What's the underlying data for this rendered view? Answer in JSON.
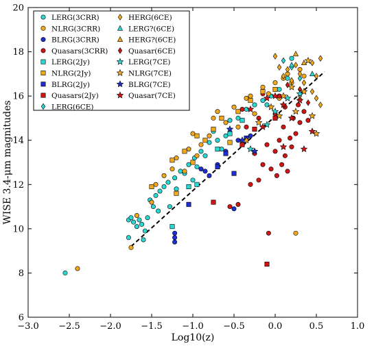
{
  "chart_data": {
    "type": "scatter",
    "xlabel": "Log10(z)",
    "ylabel": "WISE 3.4-μm magnitudes",
    "xlim": [
      -3.0,
      1.0
    ],
    "ylim": [
      6,
      20
    ],
    "xticks": [
      "−3.0",
      "−2.5",
      "−2.0",
      "−1.5",
      "−1.0",
      "−0.5",
      "0.0",
      "0.5",
      "1.0"
    ],
    "yticks": [
      "6",
      "8",
      "10",
      "12",
      "14",
      "16",
      "18",
      "20"
    ],
    "legend_position": "top-left",
    "legend": [
      {
        "label": "LERG(3CRR)",
        "marker": "circle",
        "color": "#2ad7d2"
      },
      {
        "label": "NLRG(3CRR)",
        "marker": "circle",
        "color": "#f2a81d"
      },
      {
        "label": "BLRG(3CRR)",
        "marker": "circle",
        "color": "#1f2fcf"
      },
      {
        "label": "Quasars(3CRR)",
        "marker": "circle",
        "color": "#d01515"
      },
      {
        "label": "LERG(2Jy)",
        "marker": "square",
        "color": "#2ad7d2"
      },
      {
        "label": "NLRG(2Jy)",
        "marker": "square",
        "color": "#f2a81d"
      },
      {
        "label": "BLRG(2Jy)",
        "marker": "square",
        "color": "#1f2fcf"
      },
      {
        "label": "Quasars(2Jy)",
        "marker": "square",
        "color": "#d01515"
      },
      {
        "label": "LERG(6CE)",
        "marker": "diamond",
        "color": "#2ad7d2"
      },
      {
        "label": "HERG(6CE)",
        "marker": "diamond",
        "color": "#f2a81d"
      },
      {
        "label": "LERG?(6CE)",
        "marker": "triangle",
        "color": "#2ad7d2"
      },
      {
        "label": "HERG?(6CE)",
        "marker": "triangle",
        "color": "#f2a81d"
      },
      {
        "label": "Quasar(6CE)",
        "marker": "diamond",
        "color": "#d01515"
      },
      {
        "label": "LERG(7CE)",
        "marker": "star",
        "color": "#2ad7d2"
      },
      {
        "label": "NLRG(7CE)",
        "marker": "star",
        "color": "#f2a81d"
      },
      {
        "label": "BLRG(7CE)",
        "marker": "star",
        "color": "#1f2fcf"
      },
      {
        "label": "Quasar(7CE)",
        "marker": "star",
        "color": "#d01515"
      }
    ],
    "fit_line": {
      "style": "dashed",
      "color": "#000000",
      "x": [
        -1.75,
        0.6
      ],
      "y": [
        9.2,
        17.1
      ]
    },
    "series": [
      {
        "name": "LERG(3CRR)",
        "marker": "circle",
        "color": "#2ad7d2",
        "points": [
          [
            -2.55,
            8.0
          ],
          [
            -1.78,
            9.6
          ],
          [
            -1.78,
            10.4
          ],
          [
            -1.75,
            10.5
          ],
          [
            -1.72,
            10.3
          ],
          [
            -1.68,
            10.1
          ],
          [
            -1.65,
            10.4
          ],
          [
            -1.62,
            10.2
          ],
          [
            -1.6,
            9.5
          ],
          [
            -1.58,
            9.9
          ],
          [
            -1.55,
            10.5
          ],
          [
            -1.52,
            11.3
          ],
          [
            -1.48,
            11.0
          ],
          [
            -1.45,
            11.5
          ],
          [
            -1.42,
            10.8
          ],
          [
            -1.4,
            11.7
          ],
          [
            -1.35,
            11.9
          ],
          [
            -1.3,
            12.1
          ],
          [
            -1.28,
            11.0
          ],
          [
            -1.22,
            12.3
          ],
          [
            -1.2,
            11.8
          ],
          [
            -1.15,
            12.6
          ],
          [
            -1.1,
            12.5
          ],
          [
            -1.05,
            12.9
          ],
          [
            -1.0,
            12.2
          ],
          [
            -0.98,
            13.2
          ],
          [
            -0.95,
            12.8
          ],
          [
            -0.9,
            13.5
          ],
          [
            -0.85,
            13.3
          ],
          [
            -0.8,
            13.9
          ],
          [
            -0.75,
            14.4
          ],
          [
            -0.7,
            14.0
          ],
          [
            -0.65,
            13.6
          ],
          [
            -0.6,
            14.2
          ],
          [
            -0.55,
            14.9
          ],
          [
            -0.45,
            15.0
          ],
          [
            -0.35,
            15.4
          ],
          [
            -0.25,
            15.6
          ],
          [
            -0.15,
            15.8
          ],
          [
            -0.1,
            15.6
          ],
          [
            -0.05,
            16.0
          ],
          [
            0.05,
            16.3
          ],
          [
            0.15,
            16.8
          ],
          [
            0.2,
            17.7
          ]
        ]
      },
      {
        "name": "NLRG(3CRR)",
        "marker": "circle",
        "color": "#f2a81d",
        "points": [
          [
            -2.4,
            8.2
          ],
          [
            -1.75,
            9.15
          ],
          [
            -1.68,
            10.6
          ],
          [
            -1.5,
            11.2
          ],
          [
            -1.45,
            12.0
          ],
          [
            -1.35,
            12.4
          ],
          [
            -1.25,
            12.7
          ],
          [
            -1.2,
            13.2
          ],
          [
            -1.1,
            12.6
          ],
          [
            -1.05,
            13.6
          ],
          [
            -1.0,
            14.3
          ],
          [
            -0.95,
            13.3
          ],
          [
            -0.9,
            13.8
          ],
          [
            -0.8,
            14.2
          ],
          [
            -0.75,
            15.0
          ],
          [
            -0.7,
            15.3
          ],
          [
            -0.6,
            14.8
          ],
          [
            -0.5,
            15.5
          ],
          [
            -0.45,
            14.6
          ],
          [
            -0.35,
            15.9
          ],
          [
            -0.3,
            16.0
          ],
          [
            -0.25,
            15.2
          ],
          [
            -0.15,
            16.4
          ],
          [
            -0.08,
            16.1
          ],
          [
            0.0,
            16.6
          ],
          [
            0.05,
            15.9
          ],
          [
            0.1,
            16.8
          ],
          [
            0.15,
            17.0
          ],
          [
            0.2,
            16.6
          ],
          [
            0.25,
            9.8
          ],
          [
            0.3,
            17.2
          ],
          [
            0.35,
            16.9
          ]
        ]
      },
      {
        "name": "BLRG(3CRR)",
        "marker": "circle",
        "color": "#1f2fcf",
        "points": [
          [
            -1.22,
            9.4
          ],
          [
            -1.22,
            9.6
          ],
          [
            -1.22,
            9.8
          ],
          [
            -0.9,
            12.7
          ],
          [
            -0.85,
            12.6
          ],
          [
            -0.8,
            12.4
          ],
          [
            -0.7,
            12.9
          ],
          [
            -0.6,
            13.5
          ],
          [
            -0.5,
            10.9
          ],
          [
            -0.45,
            14.0
          ],
          [
            -0.3,
            14.2
          ]
        ]
      },
      {
        "name": "Quasars(3CRR)",
        "marker": "circle",
        "color": "#d01515",
        "points": [
          [
            -0.55,
            11.0
          ],
          [
            -0.45,
            11.1
          ],
          [
            -0.3,
            12.0
          ],
          [
            -0.25,
            13.4
          ],
          [
            -0.2,
            12.2
          ],
          [
            -0.15,
            12.9
          ],
          [
            -0.1,
            13.8
          ],
          [
            -0.08,
            9.8
          ],
          [
            -0.05,
            12.7
          ],
          [
            0.0,
            13.5
          ],
          [
            0.02,
            12.4
          ],
          [
            0.05,
            14.0
          ],
          [
            0.08,
            12.9
          ],
          [
            0.1,
            14.6
          ],
          [
            0.12,
            13.3
          ],
          [
            0.15,
            12.6
          ],
          [
            0.18,
            14.1
          ],
          [
            0.2,
            13.7
          ],
          [
            0.22,
            15.0
          ],
          [
            0.25,
            14.3
          ],
          [
            0.28,
            15.6
          ],
          [
            0.3,
            14.8
          ],
          [
            0.35,
            15.3
          ],
          [
            0.4,
            14.9
          ],
          [
            -0.35,
            14.6
          ],
          [
            -0.4,
            15.4
          ],
          [
            -0.2,
            15.0
          ],
          [
            -0.15,
            16.1
          ],
          [
            0.0,
            15.2
          ],
          [
            0.05,
            16.0
          ],
          [
            0.12,
            15.5
          ]
        ]
      },
      {
        "name": "LERG(2Jy)",
        "marker": "square",
        "color": "#2ad7d2",
        "points": [
          [
            -1.25,
            10.1
          ],
          [
            -1.05,
            11.9
          ],
          [
            -0.95,
            12.0
          ],
          [
            -0.7,
            13.6
          ],
          [
            -0.55,
            14.3
          ],
          [
            -0.4,
            14.9
          ]
        ]
      },
      {
        "name": "NLRG(2Jy)",
        "marker": "square",
        "color": "#f2a81d",
        "points": [
          [
            -1.5,
            11.9
          ],
          [
            -1.25,
            13.1
          ],
          [
            -1.2,
            11.6
          ],
          [
            -1.1,
            13.5
          ],
          [
            -1.0,
            13.0
          ],
          [
            -0.95,
            14.2
          ],
          [
            -0.85,
            14.0
          ],
          [
            -0.75,
            14.5
          ],
          [
            -0.65,
            15.0
          ],
          [
            -0.55,
            13.9
          ],
          [
            -0.45,
            15.3
          ],
          [
            -0.3,
            15.8
          ],
          [
            -0.15,
            16.2
          ],
          [
            0.0,
            16.3
          ]
        ]
      },
      {
        "name": "BLRG(2Jy)",
        "marker": "square",
        "color": "#1f2fcf",
        "points": [
          [
            -1.05,
            11.1
          ],
          [
            -0.7,
            12.8
          ],
          [
            -0.6,
            13.4
          ],
          [
            -0.5,
            12.5
          ],
          [
            -0.35,
            14.1
          ]
        ]
      },
      {
        "name": "Quasars(2Jy)",
        "marker": "square",
        "color": "#d01515",
        "points": [
          [
            -0.75,
            11.2
          ],
          [
            -0.1,
            8.4
          ],
          [
            -0.4,
            13.8
          ],
          [
            -0.25,
            14.5
          ],
          [
            0.0,
            15.0
          ]
        ]
      },
      {
        "name": "LERG(6CE)",
        "marker": "diamond",
        "color": "#2ad7d2",
        "points": [
          [
            0.1,
            17.6
          ],
          [
            0.2,
            17.3
          ],
          [
            0.3,
            16.8
          ]
        ]
      },
      {
        "name": "HERG(6CE)",
        "marker": "diamond",
        "color": "#f2a81d",
        "points": [
          [
            0.0,
            17.8
          ],
          [
            0.05,
            17.3
          ],
          [
            0.1,
            16.9
          ],
          [
            0.15,
            17.2
          ],
          [
            0.2,
            16.7
          ],
          [
            0.25,
            17.4
          ],
          [
            0.3,
            17.0
          ],
          [
            0.35,
            16.6
          ],
          [
            0.45,
            17.5
          ],
          [
            0.5,
            16.9
          ],
          [
            0.55,
            17.7
          ],
          [
            0.45,
            16.2
          ],
          [
            0.5,
            15.9
          ],
          [
            0.55,
            15.6
          ]
        ]
      },
      {
        "name": "LERG?(6CE)",
        "marker": "triangle",
        "color": "#2ad7d2",
        "points": [
          [
            0.2,
            17.4
          ],
          [
            0.45,
            17.0
          ]
        ]
      },
      {
        "name": "HERG?(6CE)",
        "marker": "triangle",
        "color": "#f2a81d",
        "points": [
          [
            0.25,
            17.9
          ],
          [
            0.35,
            17.5
          ],
          [
            0.3,
            15.9
          ]
        ]
      },
      {
        "name": "Quasar(6CE)",
        "marker": "diamond",
        "color": "#d01515",
        "points": [
          [
            0.15,
            16.5
          ],
          [
            0.3,
            16.3
          ],
          [
            0.4,
            15.7
          ]
        ]
      },
      {
        "name": "LERG(7CE)",
        "marker": "star",
        "color": "#2ad7d2",
        "points": [
          [
            -0.3,
            13.6
          ],
          [
            -0.1,
            14.7
          ],
          [
            0.0,
            15.3
          ],
          [
            0.15,
            15.9
          ],
          [
            0.3,
            16.1
          ]
        ]
      },
      {
        "name": "NLRG(7CE)",
        "marker": "star",
        "color": "#f2a81d",
        "points": [
          [
            -0.35,
            14.0
          ],
          [
            -0.2,
            14.8
          ],
          [
            -0.05,
            15.5
          ],
          [
            0.05,
            15.1
          ],
          [
            0.1,
            16.0
          ],
          [
            0.2,
            16.4
          ],
          [
            0.25,
            15.3
          ],
          [
            0.35,
            16.2
          ],
          [
            0.4,
            17.6
          ],
          [
            0.45,
            15.1
          ],
          [
            0.5,
            14.3
          ]
        ]
      },
      {
        "name": "BLRG(7CE)",
        "marker": "star",
        "color": "#1f2fcf",
        "points": [
          [
            -0.55,
            14.5
          ],
          [
            -0.4,
            14.0
          ],
          [
            -0.25,
            13.5
          ]
        ]
      },
      {
        "name": "Quasar(7CE)",
        "marker": "star",
        "color": "#d01515",
        "points": [
          [
            -0.3,
            15.4
          ],
          [
            -0.15,
            14.6
          ],
          [
            0.0,
            16.0
          ],
          [
            0.1,
            15.6
          ],
          [
            0.2,
            15.0
          ],
          [
            0.3,
            15.8
          ],
          [
            0.45,
            14.4
          ],
          [
            0.35,
            13.6
          ],
          [
            0.1,
            13.7
          ],
          [
            -0.1,
            15.9
          ]
        ]
      }
    ]
  }
}
